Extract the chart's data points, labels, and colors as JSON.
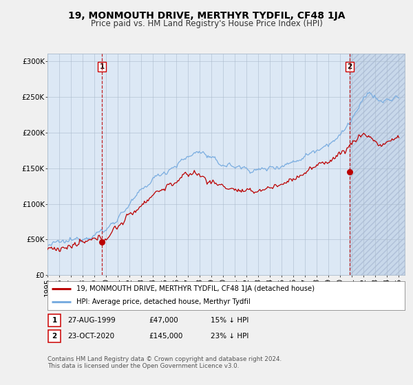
{
  "title": "19, MONMOUTH DRIVE, MERTHYR TYDFIL, CF48 1JA",
  "subtitle": "Price paid vs. HM Land Registry's House Price Index (HPI)",
  "ylabel_ticks": [
    "£0",
    "£50K",
    "£100K",
    "£150K",
    "£200K",
    "£250K",
    "£300K"
  ],
  "ytick_vals": [
    0,
    50000,
    100000,
    150000,
    200000,
    250000,
    300000
  ],
  "ylim": [
    0,
    310000
  ],
  "xlim_start": 1995.0,
  "xlim_end": 2025.5,
  "sale1_date": 1999.65,
  "sale1_price": 47000,
  "sale1_label": "1",
  "sale2_date": 2020.81,
  "sale2_price": 145000,
  "sale2_label": "2",
  "red_line_color": "#bb0000",
  "blue_line_color": "#7aade0",
  "blue_fill_color": "#ddeeff",
  "background_color": "#f0f0f0",
  "plot_bg_color": "#dce8f5",
  "plot_bg_right_color": "#d0d8e8",
  "legend_line1": "19, MONMOUTH DRIVE, MERTHYR TYDFIL, CF48 1JA (detached house)",
  "legend_line2": "HPI: Average price, detached house, Merthyr Tydfil",
  "table_row1": [
    "1",
    "27-AUG-1999",
    "£47,000",
    "15% ↓ HPI"
  ],
  "table_row2": [
    "2",
    "23-OCT-2020",
    "£145,000",
    "23% ↓ HPI"
  ],
  "footer": "Contains HM Land Registry data © Crown copyright and database right 2024.\nThis data is licensed under the Open Government Licence v3.0.",
  "title_fontsize": 10,
  "subtitle_fontsize": 8.5,
  "tick_fontsize": 7.5,
  "label_fontsize": 7.5
}
